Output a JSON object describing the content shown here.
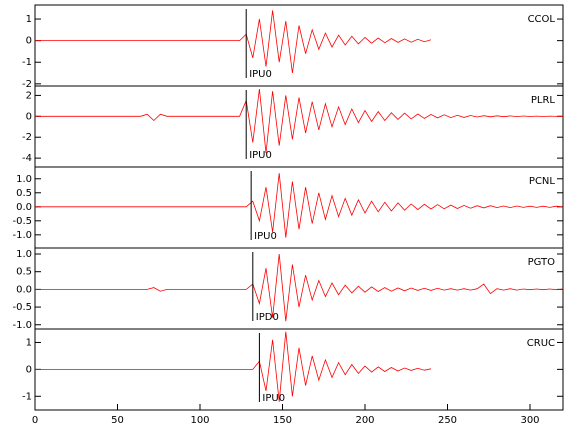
{
  "chart_data": {
    "type": "line",
    "xlim": [
      0,
      320
    ],
    "xticks": [
      0,
      50,
      100,
      150,
      200,
      250,
      300
    ],
    "x": [
      0,
      4,
      8,
      12,
      16,
      20,
      24,
      28,
      32,
      36,
      40,
      44,
      48,
      52,
      56,
      60,
      64,
      68,
      72,
      76,
      80,
      84,
      88,
      92,
      96,
      100,
      104,
      108,
      112,
      116,
      120,
      124,
      128,
      132,
      136,
      140,
      144,
      148,
      152,
      156,
      160,
      164,
      168,
      172,
      176,
      180,
      184,
      188,
      192,
      196,
      200,
      204,
      208,
      212,
      216,
      220,
      224,
      228,
      232,
      236,
      240,
      244,
      248,
      252,
      256,
      260,
      264,
      268,
      272,
      276,
      280,
      284,
      288,
      292,
      296,
      300,
      304,
      308,
      312,
      316,
      320
    ],
    "panels": [
      {
        "name": "CCOL",
        "color": "#ff0000",
        "ylim": [
          -2.1,
          1.65
        ],
        "yticks": [
          -2,
          -1,
          0,
          1
        ],
        "pick": 128,
        "pick_label": "IPU0",
        "values": [
          0,
          0,
          0,
          0,
          0,
          0,
          0,
          0,
          0,
          0,
          0,
          0,
          0,
          0,
          0,
          0,
          0,
          0,
          0,
          0,
          0,
          0,
          0,
          0,
          0,
          0,
          0,
          0,
          0,
          0,
          0,
          0,
          0.3,
          -0.8,
          1.0,
          -1.2,
          1.4,
          -1.0,
          0.9,
          -1.5,
          0.7,
          -0.6,
          0.5,
          -0.4,
          0.35,
          -0.3,
          0.25,
          -0.2,
          0.2,
          -0.15,
          0.15,
          -0.12,
          0.12,
          -0.1,
          0.1,
          -0.08,
          0.08,
          -0.07,
          0.06,
          -0.05,
          0.04,
          null,
          null,
          null,
          null,
          null,
          null,
          null,
          null,
          null,
          null,
          null,
          null,
          null,
          null,
          null,
          null,
          null,
          null,
          null,
          null
        ]
      },
      {
        "name": "PLRL",
        "color": "#ff0000",
        "ylim": [
          -4.85,
          2.9
        ],
        "yticks": [
          -4,
          -2,
          0,
          2
        ],
        "pick": 128,
        "pick_label": "IPU0",
        "values": [
          0,
          0,
          0,
          0,
          0,
          0,
          0,
          0,
          0,
          0,
          0,
          0,
          0,
          0,
          0,
          0,
          0,
          0.2,
          -0.4,
          0.2,
          0,
          0,
          0,
          0,
          0,
          0,
          0,
          0,
          0,
          0,
          0,
          0,
          1.5,
          -2.5,
          2.6,
          -3.5,
          2.4,
          -2.8,
          2.0,
          -2.2,
          1.8,
          -1.6,
          1.4,
          -1.3,
          1.2,
          -1.0,
          0.9,
          -0.8,
          0.7,
          -0.6,
          0.55,
          -0.5,
          0.45,
          -0.4,
          0.35,
          -0.3,
          0.3,
          -0.25,
          0.22,
          -0.2,
          0.18,
          -0.15,
          0.14,
          -0.12,
          0.1,
          -0.1,
          0.08,
          -0.07,
          0.06,
          -0.05,
          0.05,
          -0.04,
          0.04,
          -0.03,
          0.03,
          -0.02,
          0.02,
          -0.02,
          0.02,
          -0.01,
          0.01
        ]
      },
      {
        "name": "PCNL",
        "color": "#ff0000",
        "ylim": [
          -1.47,
          1.42
        ],
        "yticks": [
          {
            "value": -1,
            "label": "-1.0"
          },
          {
            "value": -0.5,
            "label": "-0.5"
          },
          {
            "value": 0,
            "label": "0.0"
          },
          {
            "value": 0.5,
            "label": "0.5"
          },
          {
            "value": 1,
            "label": "1.0"
          }
        ],
        "pick": 131,
        "pick_label": "IPU0",
        "values": [
          0,
          0,
          0,
          0,
          0,
          0,
          0,
          0,
          0,
          0,
          0,
          0,
          0,
          0,
          0,
          0,
          0,
          0,
          0,
          0,
          0,
          0,
          0,
          0,
          0,
          0,
          0,
          0,
          0,
          0,
          0,
          0,
          0,
          0.2,
          -0.5,
          0.7,
          -0.9,
          1.2,
          -1.1,
          0.9,
          -0.8,
          0.7,
          -0.6,
          0.5,
          -0.45,
          0.4,
          -0.35,
          0.3,
          -0.3,
          0.25,
          -0.22,
          0.2,
          -0.18,
          0.16,
          -0.15,
          0.14,
          -0.12,
          0.1,
          -0.1,
          0.09,
          -0.08,
          0.08,
          -0.07,
          0.06,
          -0.06,
          0.05,
          -0.05,
          0.04,
          -0.04,
          0.04,
          -0.03,
          0.03,
          -0.03,
          0.03,
          -0.02,
          0.02,
          -0.02,
          0.02,
          -0.02,
          0.02,
          -0.01
        ]
      },
      {
        "name": "PGTO",
        "color": "#ff0000",
        "ylim": [
          -1.12,
          1.17
        ],
        "yticks": [
          {
            "value": -1,
            "label": "-1.0"
          },
          {
            "value": -0.5,
            "label": "-0.5"
          },
          {
            "value": 0,
            "label": "0.0"
          },
          {
            "value": 0.5,
            "label": "0.5"
          },
          {
            "value": 1,
            "label": "1.0"
          }
        ],
        "pick": 132,
        "pick_label": "IPD0",
        "values": [
          0,
          0,
          0,
          0,
          0,
          0,
          0,
          0,
          0,
          0,
          0,
          0,
          0,
          0,
          0,
          0,
          0,
          0,
          0.05,
          -0.05,
          0,
          0,
          0,
          0,
          0,
          0,
          0,
          0,
          0,
          0,
          0,
          0,
          0,
          0.15,
          -0.4,
          0.6,
          -0.8,
          1.0,
          -0.9,
          0.7,
          -0.5,
          0.4,
          -0.3,
          0.25,
          -0.2,
          0.18,
          -0.15,
          0.12,
          -0.1,
          0.09,
          -0.08,
          0.07,
          -0.06,
          0.05,
          -0.05,
          0.04,
          -0.04,
          0.04,
          -0.03,
          0.03,
          -0.03,
          0.03,
          -0.02,
          0.02,
          -0.02,
          0.02,
          -0.02,
          0.02,
          0.15,
          -0.12,
          0.02,
          -0.02,
          0.02,
          -0.02,
          0.01,
          -0.01,
          0.01,
          -0.01,
          0.01,
          -0.01,
          0.01
        ]
      },
      {
        "name": "CRUC",
        "color": "#ff0000",
        "ylim": [
          -1.51,
          1.5
        ],
        "yticks": [
          -1,
          0,
          1
        ],
        "pick": 136,
        "pick_label": "IPU0",
        "values": [
          0,
          0,
          0,
          0,
          0,
          0,
          0,
          0,
          0,
          0,
          0,
          0,
          0,
          0,
          0,
          0,
          0,
          0,
          0,
          0,
          0,
          0,
          0,
          0,
          0,
          0,
          0,
          0,
          0,
          0,
          0,
          0,
          0,
          0,
          0.3,
          -0.8,
          1.1,
          -1.2,
          1.4,
          -1.0,
          0.8,
          -0.6,
          0.5,
          -0.4,
          0.35,
          -0.3,
          0.25,
          -0.2,
          0.18,
          -0.15,
          0.12,
          -0.1,
          0.09,
          -0.08,
          0.07,
          -0.06,
          0.05,
          -0.04,
          0.04,
          -0.03,
          0.02,
          null,
          null,
          null,
          null,
          null,
          null,
          null,
          null,
          null,
          null,
          null,
          null,
          null,
          null,
          null,
          null,
          null,
          null,
          null,
          null
        ]
      }
    ]
  }
}
